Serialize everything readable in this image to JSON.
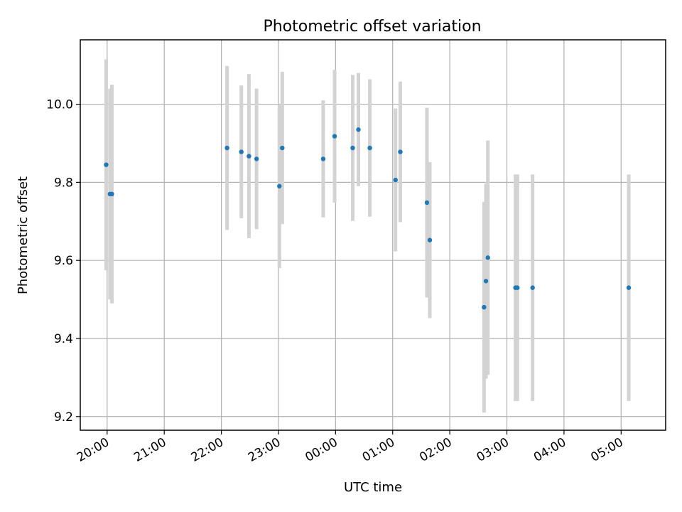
{
  "chart_data": {
    "type": "scatter",
    "title": "Photometric offset variation",
    "xlabel": "UTC time",
    "ylabel": "Photometric offset",
    "x_axis_type": "time",
    "x_date_start": "day 1",
    "x_lim_hours": [
      19.53,
      29.78
    ],
    "ylim": [
      9.165,
      10.165
    ],
    "grid": true,
    "x_ticks": [
      {
        "hour": 20,
        "label": "20:00"
      },
      {
        "hour": 21,
        "label": "21:00"
      },
      {
        "hour": 22,
        "label": "22:00"
      },
      {
        "hour": 23,
        "label": "23:00"
      },
      {
        "hour": 24,
        "label": "00:00"
      },
      {
        "hour": 25,
        "label": "01:00"
      },
      {
        "hour": 26,
        "label": "02:00"
      },
      {
        "hour": 27,
        "label": "03:00"
      },
      {
        "hour": 28,
        "label": "04:00"
      },
      {
        "hour": 29,
        "label": "05:00"
      }
    ],
    "y_ticks": [
      {
        "value": 9.2,
        "label": "9.2"
      },
      {
        "value": 9.4,
        "label": "9.4"
      },
      {
        "value": 9.6,
        "label": "9.6"
      },
      {
        "value": 9.8,
        "label": "9.8"
      },
      {
        "value": 10.0,
        "label": "10.0"
      }
    ],
    "colors": {
      "point": "#1f77b4",
      "errorbar": "#d3d3d3"
    },
    "points": [
      {
        "t": "19:59",
        "y": 9.845,
        "err": 0.27
      },
      {
        "t": "20:03",
        "y": 9.77,
        "err": 0.27
      },
      {
        "t": "20:05",
        "y": 9.77,
        "err": 0.28
      },
      {
        "t": "22:06",
        "y": 9.888,
        "err": 0.21
      },
      {
        "t": "22:21",
        "y": 9.878,
        "err": 0.17
      },
      {
        "t": "22:29",
        "y": 9.867,
        "err": 0.21
      },
      {
        "t": "22:37",
        "y": 9.86,
        "err": 0.18
      },
      {
        "t": "23:01",
        "y": 9.79,
        "err": 0.21
      },
      {
        "t": "23:04",
        "y": 9.888,
        "err": 0.195
      },
      {
        "t": "23:47",
        "y": 9.86,
        "err": 0.15
      },
      {
        "t": "23:59",
        "y": 9.918,
        "err": 0.17
      },
      {
        "t": "00:18",
        "y": 9.888,
        "err": 0.187
      },
      {
        "t": "00:24",
        "y": 9.935,
        "err": 0.145
      },
      {
        "t": "00:36",
        "y": 9.888,
        "err": 0.176
      },
      {
        "t": "01:03",
        "y": 9.806,
        "err": 0.183
      },
      {
        "t": "01:08",
        "y": 9.878,
        "err": 0.18
      },
      {
        "t": "01:36",
        "y": 9.748,
        "err": 0.243
      },
      {
        "t": "01:39",
        "y": 9.652,
        "err": 0.2
      },
      {
        "t": "02:36",
        "y": 9.48,
        "err": 0.27
      },
      {
        "t": "02:38",
        "y": 9.547,
        "err": 0.25
      },
      {
        "t": "02:40",
        "y": 9.607,
        "err": 0.3
      },
      {
        "t": "03:09",
        "y": 9.53,
        "err": 0.29
      },
      {
        "t": "03:11",
        "y": 9.53,
        "err": 0.29
      },
      {
        "t": "03:27",
        "y": 9.53,
        "err": 0.29
      },
      {
        "t": "05:08",
        "y": 9.53,
        "err": 0.29
      }
    ]
  }
}
